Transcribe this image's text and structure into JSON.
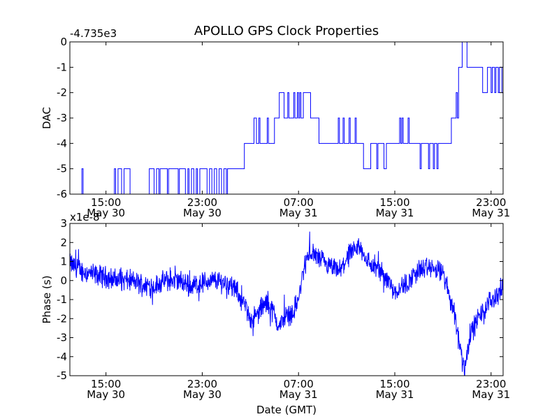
{
  "title": "APOLLO GPS Clock Properties",
  "chart_data": [
    {
      "type": "line",
      "name": "dac",
      "title": "APOLLO GPS Clock Properties",
      "ylabel": "DAC",
      "xlabel": "",
      "offset_text": "-4.735e3",
      "ylim": [
        -6,
        0
      ],
      "yticks": [
        "0",
        "-1",
        "-2",
        "-3",
        "-4",
        "-5",
        "-6"
      ],
      "xticks": [
        {
          "time": "15:00",
          "date": "May 30",
          "hours": 15
        },
        {
          "time": "23:00",
          "date": "May 30",
          "hours": 23
        },
        {
          "time": "07:00",
          "date": "May 31",
          "hours": 31
        },
        {
          "time": "15:00",
          "date": "May 31",
          "hours": 39
        },
        {
          "time": "23:00",
          "date": "May 31",
          "hours": 47
        }
      ],
      "xlim_hours": [
        12,
        48
      ],
      "color": "#0000ff",
      "series": [
        {
          "name": "DAC",
          "segments": [
            [
              12.0,
              -6
            ],
            [
              12.9,
              -6
            ],
            [
              13.0,
              -5
            ],
            [
              13.1,
              -6
            ],
            [
              14.0,
              -6
            ],
            [
              15.6,
              -6
            ],
            [
              15.7,
              -5
            ],
            [
              15.8,
              -6
            ],
            [
              16.0,
              -5
            ],
            [
              16.2,
              -5
            ],
            [
              16.3,
              -6
            ],
            [
              16.5,
              -5
            ],
            [
              16.9,
              -5
            ],
            [
              17.0,
              -6
            ],
            [
              18.5,
              -6
            ],
            [
              18.6,
              -5
            ],
            [
              18.9,
              -5
            ],
            [
              19.0,
              -6
            ],
            [
              19.2,
              -5
            ],
            [
              19.4,
              -6
            ],
            [
              19.5,
              -5
            ],
            [
              20.0,
              -5
            ],
            [
              20.1,
              -6
            ],
            [
              20.2,
              -5
            ],
            [
              20.9,
              -5
            ],
            [
              21.0,
              -6
            ],
            [
              21.1,
              -5
            ],
            [
              21.5,
              -5
            ],
            [
              21.6,
              -6
            ],
            [
              21.8,
              -5
            ],
            [
              21.9,
              -6
            ],
            [
              22.1,
              -5
            ],
            [
              22.3,
              -6
            ],
            [
              22.5,
              -5
            ],
            [
              22.6,
              -6
            ],
            [
              22.8,
              -5
            ],
            [
              23.3,
              -5
            ],
            [
              23.4,
              -6
            ],
            [
              23.6,
              -5
            ],
            [
              23.8,
              -6
            ],
            [
              24.0,
              -5
            ],
            [
              24.2,
              -6
            ],
            [
              24.4,
              -5
            ],
            [
              24.6,
              -6
            ],
            [
              24.8,
              -5
            ],
            [
              25.0,
              -6
            ],
            [
              25.1,
              -5
            ],
            [
              26.4,
              -5
            ],
            [
              26.5,
              -4
            ],
            [
              27.2,
              -4
            ],
            [
              27.3,
              -3
            ],
            [
              27.5,
              -4
            ],
            [
              27.7,
              -3
            ],
            [
              27.8,
              -4
            ],
            [
              28.3,
              -4
            ],
            [
              28.4,
              -3
            ],
            [
              28.5,
              -4
            ],
            [
              28.9,
              -4
            ],
            [
              29.0,
              -3
            ],
            [
              29.3,
              -3
            ],
            [
              29.4,
              -2
            ],
            [
              29.7,
              -2
            ],
            [
              29.8,
              -3
            ],
            [
              30.0,
              -3
            ],
            [
              30.1,
              -2
            ],
            [
              30.2,
              -3
            ],
            [
              30.5,
              -3
            ],
            [
              30.6,
              -2
            ],
            [
              30.7,
              -3
            ],
            [
              30.9,
              -2
            ],
            [
              31.0,
              -3
            ],
            [
              31.1,
              -2
            ],
            [
              31.2,
              -3
            ],
            [
              31.4,
              -2
            ],
            [
              31.9,
              -2
            ],
            [
              32.0,
              -3
            ],
            [
              32.6,
              -3
            ],
            [
              32.7,
              -4
            ],
            [
              34.2,
              -4
            ],
            [
              34.3,
              -3
            ],
            [
              34.4,
              -4
            ],
            [
              34.6,
              -4
            ],
            [
              34.7,
              -3
            ],
            [
              34.8,
              -4
            ],
            [
              35.1,
              -4
            ],
            [
              35.2,
              -3
            ],
            [
              35.3,
              -4
            ],
            [
              35.6,
              -4
            ],
            [
              35.7,
              -3
            ],
            [
              35.8,
              -4
            ],
            [
              36.3,
              -4
            ],
            [
              36.4,
              -5
            ],
            [
              36.9,
              -5
            ],
            [
              37.0,
              -4
            ],
            [
              37.4,
              -4
            ],
            [
              37.5,
              -5
            ],
            [
              37.6,
              -4
            ],
            [
              38.0,
              -4
            ],
            [
              38.1,
              -5
            ],
            [
              38.3,
              -4
            ],
            [
              39.3,
              -4
            ],
            [
              39.4,
              -3
            ],
            [
              39.5,
              -4
            ],
            [
              39.6,
              -3
            ],
            [
              39.7,
              -4
            ],
            [
              40.0,
              -4
            ],
            [
              40.1,
              -3
            ],
            [
              40.2,
              -4
            ],
            [
              41.0,
              -4
            ],
            [
              41.1,
              -5
            ],
            [
              41.2,
              -4
            ],
            [
              41.7,
              -4
            ],
            [
              41.8,
              -5
            ],
            [
              41.9,
              -4
            ],
            [
              42.1,
              -4
            ],
            [
              42.2,
              -5
            ],
            [
              42.3,
              -4
            ],
            [
              42.5,
              -5
            ],
            [
              42.6,
              -4
            ],
            [
              43.6,
              -4
            ],
            [
              43.7,
              -3
            ],
            [
              44.0,
              -3
            ],
            [
              44.1,
              -2
            ],
            [
              44.2,
              -3
            ],
            [
              44.3,
              -1
            ],
            [
              44.5,
              -1
            ],
            [
              44.6,
              0
            ],
            [
              44.9,
              0
            ],
            [
              45.0,
              -1
            ],
            [
              46.2,
              -1
            ],
            [
              46.3,
              -2
            ],
            [
              46.6,
              -2
            ],
            [
              46.7,
              -1
            ],
            [
              46.9,
              -1
            ],
            [
              47.0,
              -2
            ],
            [
              47.1,
              -1
            ],
            [
              47.3,
              -2
            ],
            [
              47.4,
              -1
            ],
            [
              47.6,
              -2
            ],
            [
              47.7,
              -1
            ],
            [
              47.9,
              -2
            ],
            [
              48.0,
              -2
            ]
          ]
        }
      ]
    },
    {
      "type": "line",
      "name": "phase",
      "ylabel": "Phase (s)",
      "xlabel": "Date (GMT)",
      "offset_text": "x1e-8",
      "ylim": [
        -5,
        3
      ],
      "yticks": [
        "3",
        "2",
        "1",
        "0",
        "-1",
        "-2",
        "-3",
        "-4",
        "-5"
      ],
      "xticks": [
        {
          "time": "15:00",
          "date": "May 30",
          "hours": 15
        },
        {
          "time": "23:00",
          "date": "May 30",
          "hours": 23
        },
        {
          "time": "07:00",
          "date": "May 31",
          "hours": 31
        },
        {
          "time": "15:00",
          "date": "May 31",
          "hours": 39
        },
        {
          "time": "23:00",
          "date": "May 31",
          "hours": 47
        }
      ],
      "xlim_hours": [
        12,
        48
      ],
      "color": "#0000ff",
      "series": [
        {
          "name": "Phase",
          "noise": 0.45,
          "base": [
            [
              12.0,
              0.9
            ],
            [
              12.5,
              0.7
            ],
            [
              13.0,
              0.5
            ],
            [
              14.0,
              0.3
            ],
            [
              15.0,
              0.2
            ],
            [
              16.0,
              0.0
            ],
            [
              17.0,
              0.0
            ],
            [
              18.0,
              -0.2
            ],
            [
              19.0,
              -0.3
            ],
            [
              20.0,
              0.0
            ],
            [
              21.0,
              0.0
            ],
            [
              22.0,
              -0.3
            ],
            [
              23.0,
              -0.1
            ],
            [
              24.0,
              0.0
            ],
            [
              25.0,
              -0.1
            ],
            [
              25.8,
              -0.5
            ],
            [
              26.5,
              -1.3
            ],
            [
              27.0,
              -2.0
            ],
            [
              27.5,
              -1.9
            ],
            [
              28.0,
              -1.3
            ],
            [
              28.5,
              -1.2
            ],
            [
              29.0,
              -1.8
            ],
            [
              29.4,
              -2.5
            ],
            [
              29.8,
              -1.9
            ],
            [
              30.5,
              -1.7
            ],
            [
              31.0,
              -1.0
            ],
            [
              31.5,
              0.8
            ],
            [
              32.0,
              1.5
            ],
            [
              33.0,
              1.0
            ],
            [
              33.5,
              0.7
            ],
            [
              34.0,
              0.6
            ],
            [
              34.5,
              0.5
            ],
            [
              35.0,
              1.2
            ],
            [
              35.5,
              1.4
            ],
            [
              36.0,
              1.8
            ],
            [
              36.5,
              1.3
            ],
            [
              37.0,
              0.8
            ],
            [
              37.8,
              0.5
            ],
            [
              38.5,
              0.0
            ],
            [
              39.0,
              -0.6
            ],
            [
              39.5,
              -0.3
            ],
            [
              40.0,
              -0.2
            ],
            [
              40.5,
              0.2
            ],
            [
              41.0,
              0.6
            ],
            [
              41.5,
              0.6
            ],
            [
              42.0,
              0.7
            ],
            [
              42.5,
              0.5
            ],
            [
              43.0,
              0.4
            ],
            [
              43.5,
              -0.7
            ],
            [
              44.0,
              -1.8
            ],
            [
              44.5,
              -3.8
            ],
            [
              44.8,
              -4.6
            ],
            [
              45.2,
              -3.0
            ],
            [
              45.8,
              -2.1
            ],
            [
              46.5,
              -1.5
            ],
            [
              47.0,
              -1.0
            ],
            [
              47.5,
              -0.8
            ],
            [
              48.0,
              -0.3
            ]
          ]
        }
      ]
    }
  ]
}
